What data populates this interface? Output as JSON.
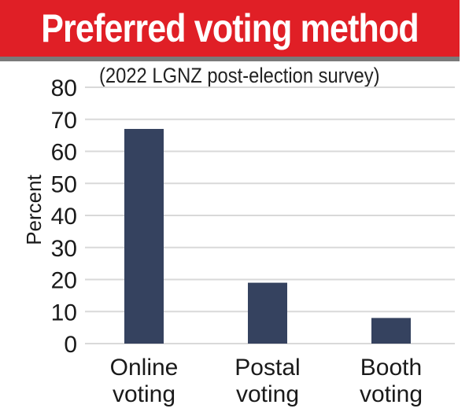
{
  "chart_data": {
    "type": "bar",
    "title": "Preferred voting method",
    "subtitle": "(2022 LGNZ post-election survey)",
    "ylabel": "Percent",
    "xlabel": "",
    "categories": [
      [
        "Online",
        "voting"
      ],
      [
        "Postal",
        "voting"
      ],
      [
        "Booth",
        "voting"
      ]
    ],
    "values": [
      67,
      19,
      8
    ],
    "ylim": [
      0,
      80
    ],
    "yticks": [
      0,
      10,
      20,
      30,
      40,
      50,
      60,
      70,
      80
    ],
    "grid": true,
    "legend": "none",
    "colors": {
      "bar": "#35425f",
      "grid": "#d9d9d9",
      "banner": "#e01f26"
    }
  }
}
